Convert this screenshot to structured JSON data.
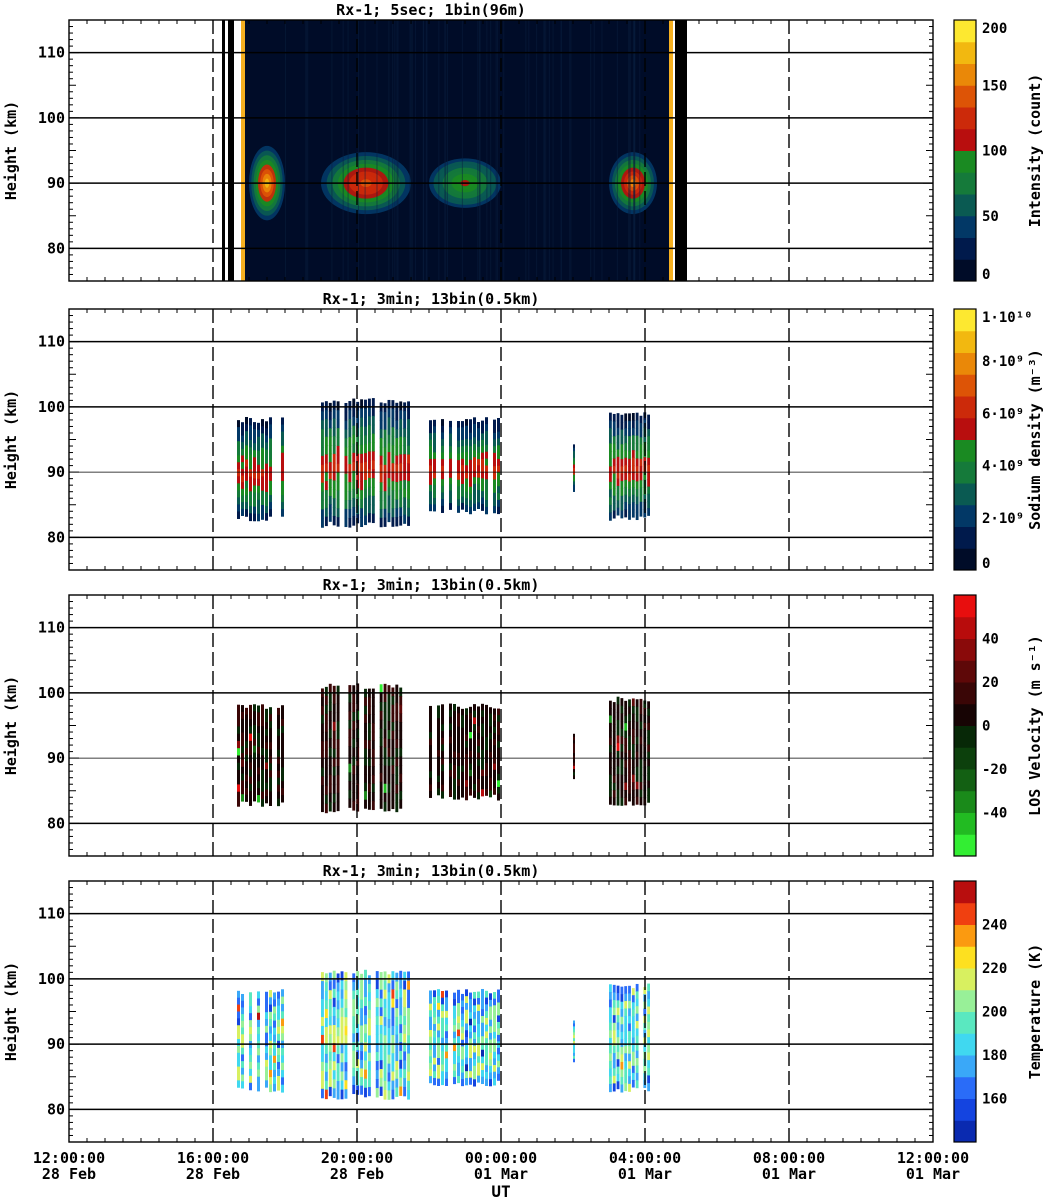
{
  "figure": {
    "xlabel": "UT",
    "x_ticks": [
      {
        "time": "12:00:00",
        "date": "28 Feb"
      },
      {
        "time": "16:00:00",
        "date": "28 Feb"
      },
      {
        "time": "20:00:00",
        "date": "28 Feb"
      },
      {
        "time": "00:00:00",
        "date": "01 Mar"
      },
      {
        "time": "04:00:00",
        "date": "01 Mar"
      },
      {
        "time": "08:00:00",
        "date": "01 Mar"
      },
      {
        "time": "12:00:00",
        "date": "01 Mar"
      }
    ]
  },
  "chart_data": [
    {
      "type": "heatmap",
      "title": "Rx-1;  5sec; 1bin(96m)",
      "ylabel": "Height (km)",
      "ylim": [
        75,
        115
      ],
      "yticks": [
        80,
        90,
        100,
        110
      ],
      "xlim": [
        "2024-02-28T12:00",
        "2024-03-01T12:00"
      ],
      "colorbar_label": "Intensity (count)",
      "colorbar_ticks": [
        "0",
        "50",
        "100",
        "150",
        "200"
      ],
      "colorbar_range": [
        0,
        200
      ],
      "colors": [
        "#000c28",
        "#001a4c",
        "#023866",
        "#0a5a52",
        "#157a3a",
        "#1a8a22",
        "#b80e0e",
        "#cc2a0a",
        "#dd5406",
        "#ea8808",
        "#f2b810",
        "#fde830"
      ],
      "layers": [
        {
          "name": "background-block",
          "t_start": "16:50",
          "t_end": "18:00",
          "h_start": 75,
          "h_end": 115,
          "level": 0.05
        },
        {
          "name": "background-block",
          "t_start": "18:00",
          "t_end": "04:40",
          "h_start": 75,
          "h_end": 115,
          "level": 0.04
        },
        {
          "name": "sodium-layer-1",
          "t_start": "17:00",
          "t_end": "18:00",
          "h_start": 84,
          "h_end": 96,
          "level": 0.75
        },
        {
          "name": "sodium-layer-2",
          "t_start": "19:00",
          "t_end": "21:30",
          "h_start": 85,
          "h_end": 95,
          "level": 0.6
        },
        {
          "name": "sodium-layer-3",
          "t_start": "22:00",
          "t_end": "00:00",
          "h_start": 86,
          "h_end": 94,
          "level": 0.35
        },
        {
          "name": "sodium-layer-4",
          "t_start": "03:00",
          "t_end": "04:20",
          "h_start": 85,
          "h_end": 95,
          "level": 0.65
        }
      ],
      "gaps": [
        [
          "16:15",
          "16:20"
        ],
        [
          "16:25",
          "16:35"
        ],
        [
          "04:50",
          "05:10"
        ]
      ]
    },
    {
      "type": "heatmap",
      "title": "Rx-1; 3min; 13bin(0.5km)",
      "ylabel": "Height (km)",
      "ylim": [
        75,
        115
      ],
      "yticks": [
        80,
        90,
        100,
        110
      ],
      "xlim": [
        "2024-02-28T12:00",
        "2024-03-01T12:00"
      ],
      "colorbar_label": "Sodium density (m⁻³)",
      "colorbar_ticks": [
        "0",
        "2·10⁹",
        "4·10⁹",
        "6·10⁹",
        "8·10⁹",
        "1·10¹⁰"
      ],
      "colorbar_range": [
        0,
        10000000000.0
      ],
      "colors": [
        "#000c28",
        "#001a4c",
        "#023866",
        "#0a5a52",
        "#157a3a",
        "#1a8a22",
        "#b80e0e",
        "#cc2a0a",
        "#dd5406",
        "#ea8808",
        "#f2b810",
        "#fde830"
      ],
      "segments": [
        {
          "t_start": "16:40",
          "t_end": "18:00",
          "h_start": 83,
          "h_end": 98,
          "peak": 0.6
        },
        {
          "t_start": "19:00",
          "t_end": "21:30",
          "h_start": 82,
          "h_end": 101,
          "peak": 0.5
        },
        {
          "t_start": "22:00",
          "t_end": "00:00",
          "h_start": 84,
          "h_end": 98,
          "peak": 0.55
        },
        {
          "t_start": "02:00",
          "t_end": "02:05",
          "h_start": 87,
          "h_end": 94,
          "peak": 0.6
        },
        {
          "t_start": "03:00",
          "t_end": "04:10",
          "h_start": 83,
          "h_end": 99,
          "peak": 0.55
        }
      ]
    },
    {
      "type": "heatmap",
      "title": "Rx-1; 3min; 13bin(0.5km)",
      "ylabel": "Height (km)",
      "ylim": [
        75,
        115
      ],
      "yticks": [
        80,
        90,
        100,
        110
      ],
      "xlim": [
        "2024-02-28T12:00",
        "2024-03-01T12:00"
      ],
      "colorbar_label": "LOS Velocity (m s⁻¹)",
      "colorbar_ticks": [
        "-40",
        "-20",
        "0",
        "20",
        "40"
      ],
      "colorbar_range": [
        -50,
        50
      ],
      "colors": [
        "#33ee33",
        "#22bb22",
        "#1a8a1a",
        "#136013",
        "#0c400c",
        "#072807",
        "#170404",
        "#3a0606",
        "#5e0808",
        "#8a0a0a",
        "#b80c0c",
        "#e80e0e"
      ],
      "segments": [
        {
          "t_start": "16:40",
          "t_end": "18:00",
          "h_start": 83,
          "h_end": 98,
          "peak": 0.0
        },
        {
          "t_start": "19:00",
          "t_end": "21:30",
          "h_start": 82,
          "h_end": 101,
          "peak": 0.0
        },
        {
          "t_start": "22:00",
          "t_end": "00:00",
          "h_start": 84,
          "h_end": 98,
          "peak": 0.0
        },
        {
          "t_start": "02:00",
          "t_end": "02:05",
          "h_start": 87,
          "h_end": 94,
          "peak": 0.0
        },
        {
          "t_start": "03:00",
          "t_end": "04:10",
          "h_start": 83,
          "h_end": 99,
          "peak": 0.0
        }
      ]
    },
    {
      "type": "heatmap",
      "title": "Rx-1; 3min; 13bin(0.5km)",
      "ylabel": "Height (km)",
      "ylim": [
        75,
        115
      ],
      "yticks": [
        80,
        90,
        100,
        110
      ],
      "xlim": [
        "2024-02-28T12:00",
        "2024-03-01T12:00"
      ],
      "colorbar_label": "Temperature (K)",
      "colorbar_ticks": [
        "160",
        "180",
        "200",
        "220",
        "240"
      ],
      "colorbar_range": [
        150,
        250
      ],
      "colors": [
        "#0a2ab0",
        "#1444e0",
        "#2a6cf8",
        "#3aa8f8",
        "#40d8f0",
        "#5ae8c0",
        "#98f098",
        "#d8f060",
        "#fde020",
        "#fb9a10",
        "#f04010",
        "#b80e0e"
      ],
      "segments": [
        {
          "t_start": "16:40",
          "t_end": "18:00",
          "h_start": 83,
          "h_end": 98,
          "peak": 195
        },
        {
          "t_start": "19:00",
          "t_end": "21:30",
          "h_start": 82,
          "h_end": 101,
          "peak": 205
        },
        {
          "t_start": "22:00",
          "t_end": "00:00",
          "h_start": 84,
          "h_end": 98,
          "peak": 205
        },
        {
          "t_start": "02:00",
          "t_end": "02:05",
          "h_start": 87,
          "h_end": 94,
          "peak": 210
        },
        {
          "t_start": "03:00",
          "t_end": "04:10",
          "h_start": 83,
          "h_end": 99,
          "peak": 200
        }
      ]
    }
  ]
}
